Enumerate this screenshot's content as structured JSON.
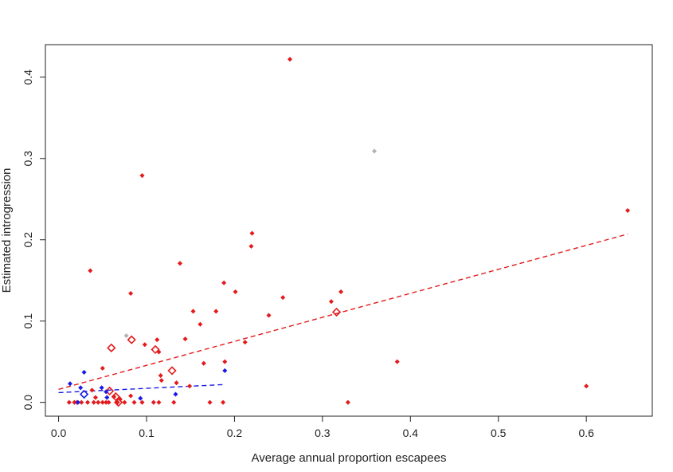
{
  "chart_data": {
    "type": "scatter",
    "title": "",
    "xlabel": "Average annual proportion escapees",
    "ylabel": "Estimated introgression",
    "xlim": [
      -0.015,
      0.675
    ],
    "ylim": [
      -0.017,
      0.44
    ],
    "x_ticks": [
      0.0,
      0.1,
      0.2,
      0.3,
      0.4,
      0.5,
      0.6
    ],
    "x_tick_labels": [
      "0.0",
      "0.1",
      "0.2",
      "0.3",
      "0.4",
      "0.5",
      "0.6"
    ],
    "y_ticks": [
      0.0,
      0.1,
      0.2,
      0.3,
      0.4
    ],
    "y_tick_labels": [
      "0.0",
      "0.1",
      "0.2",
      "0.3",
      "0.4"
    ],
    "grid": false,
    "legend": "none",
    "colors": {
      "red": "#e41a1c",
      "blue": "#1a1ae6",
      "grey": "#b3b3b3"
    },
    "series": [
      {
        "marker": "filled-diamond",
        "color": "red",
        "points": [
          [
            0.263,
            0.422
          ],
          [
            0.095,
            0.279
          ],
          [
            0.647,
            0.236
          ],
          [
            0.22,
            0.208
          ],
          [
            0.219,
            0.192
          ],
          [
            0.138,
            0.171
          ],
          [
            0.036,
            0.162
          ],
          [
            0.188,
            0.147
          ],
          [
            0.201,
            0.136
          ],
          [
            0.082,
            0.134
          ],
          [
            0.321,
            0.136
          ],
          [
            0.255,
            0.129
          ],
          [
            0.31,
            0.124
          ],
          [
            0.153,
            0.112
          ],
          [
            0.179,
            0.112
          ],
          [
            0.239,
            0.107
          ],
          [
            0.161,
            0.096
          ],
          [
            0.144,
            0.078
          ],
          [
            0.112,
            0.077
          ],
          [
            0.212,
            0.074
          ],
          [
            0.098,
            0.071
          ],
          [
            0.114,
            0.062
          ],
          [
            0.165,
            0.048
          ],
          [
            0.385,
            0.05
          ],
          [
            0.189,
            0.05
          ],
          [
            0.05,
            0.042
          ],
          [
            0.116,
            0.033
          ],
          [
            0.117,
            0.027
          ],
          [
            0.134,
            0.024
          ],
          [
            0.6,
            0.02
          ],
          [
            0.149,
            0.02
          ],
          [
            0.038,
            0.015
          ],
          [
            0.082,
            0.008
          ],
          [
            0.063,
            0.007
          ],
          [
            0.042,
            0.006
          ],
          [
            0.07,
            0.004
          ],
          [
            0.012,
            0.0
          ],
          [
            0.018,
            0.0
          ],
          [
            0.021,
            0.0
          ],
          [
            0.026,
            0.0
          ],
          [
            0.033,
            0.0
          ],
          [
            0.04,
            0.0
          ],
          [
            0.045,
            0.0
          ],
          [
            0.05,
            0.0
          ],
          [
            0.054,
            0.0
          ],
          [
            0.057,
            0.0
          ],
          [
            0.067,
            0.0
          ],
          [
            0.075,
            0.0
          ],
          [
            0.086,
            0.0
          ],
          [
            0.095,
            0.0
          ],
          [
            0.108,
            0.0
          ],
          [
            0.114,
            0.0
          ],
          [
            0.131,
            0.0
          ],
          [
            0.172,
            0.0
          ],
          [
            0.187,
            0.0
          ],
          [
            0.329,
            0.0
          ]
        ]
      },
      {
        "marker": "open-diamond",
        "color": "red",
        "points": [
          [
            0.316,
            0.111
          ],
          [
            0.083,
            0.077
          ],
          [
            0.06,
            0.067
          ],
          [
            0.11,
            0.065
          ],
          [
            0.129,
            0.039
          ],
          [
            0.058,
            0.014
          ],
          [
            0.065,
            0.007
          ],
          [
            0.068,
            0.0
          ]
        ]
      },
      {
        "marker": "filled-diamond",
        "color": "blue",
        "points": [
          [
            0.189,
            0.039
          ],
          [
            0.029,
            0.037
          ],
          [
            0.013,
            0.023
          ],
          [
            0.025,
            0.018
          ],
          [
            0.049,
            0.018
          ],
          [
            0.054,
            0.013
          ],
          [
            0.133,
            0.01
          ],
          [
            0.055,
            0.006
          ],
          [
            0.093,
            0.005
          ],
          [
            0.022,
            0.0
          ]
        ]
      },
      {
        "marker": "open-diamond",
        "color": "blue",
        "points": [
          [
            0.029,
            0.01
          ]
        ]
      },
      {
        "marker": "filled-diamond",
        "color": "grey",
        "points": [
          [
            0.359,
            0.309
          ],
          [
            0.077,
            0.082
          ]
        ]
      }
    ],
    "trend_lines": [
      {
        "color": "red",
        "style": "dashed",
        "x": [
          0.0,
          0.647
        ],
        "y": [
          0.016,
          0.207
        ]
      },
      {
        "color": "blue",
        "style": "dashed",
        "x": [
          0.0,
          0.19
        ],
        "y": [
          0.012,
          0.022
        ]
      }
    ]
  }
}
